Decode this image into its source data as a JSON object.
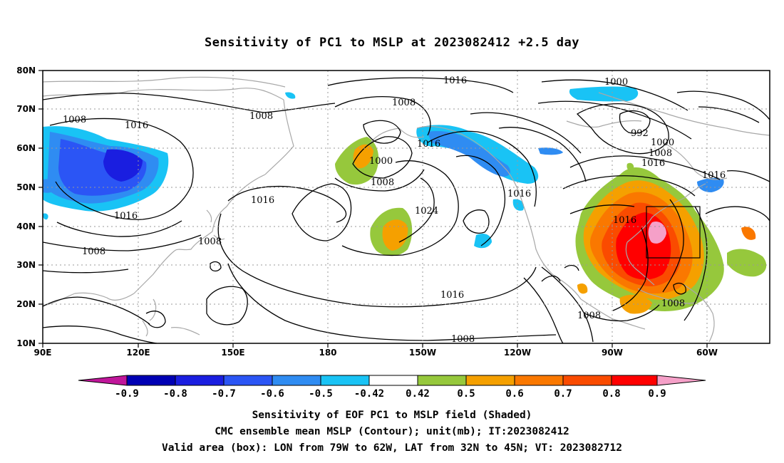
{
  "title": "Sensitivity of PC1 to MSLP at 2023082412 +2.5 day",
  "map": {
    "lon_labels": [
      "90E",
      "120E",
      "150E",
      "180",
      "150W",
      "120W",
      "90W",
      "60W"
    ],
    "lat_labels": [
      "80N",
      "70N",
      "60N",
      "50N",
      "40N",
      "30N",
      "20N",
      "10N"
    ],
    "valid_box": {
      "lon_from": "79W",
      "lon_to": "62W",
      "lat_from": "32N",
      "lat_to": "45N"
    }
  },
  "contour_labels": [
    "1016",
    "1008",
    "1008",
    "1016",
    "1016",
    "1008",
    "1000",
    "1008",
    "1016",
    "1024",
    "1016",
    "1016",
    "1000",
    "992",
    "1000",
    "1008",
    "1016",
    "1016",
    "1016",
    "1008",
    "1016",
    "1008",
    "1008",
    "1008"
  ],
  "colorbar": {
    "labels": [
      "-0.9",
      "-0.8",
      "-0.7",
      "-0.6",
      "-0.5",
      "-0.42",
      "0.42",
      "0.5",
      "0.6",
      "0.7",
      "0.8",
      "0.9"
    ],
    "colors": {
      "lt_m09": "#c0169a",
      "m09_m08": "#0000b4",
      "m08_m07": "#1a1ee0",
      "m07_m06": "#2b55f5",
      "m06_m05": "#2f8cf2",
      "m05_m042": "#19c3f5",
      "neutral": "#ffffff",
      "p042_p05": "#96c83c",
      "p05_p06": "#f5a000",
      "p06_p07": "#fa7800",
      "p07_p08": "#fa4b00",
      "p08_p09": "#ff0000",
      "gt_p09": "#f5a0c8"
    }
  },
  "captions": [
    "Sensitivity of EOF PC1 to MSLP field (Shaded)",
    "CMC ensemble mean MSLP (Contour); unit(mb); IT:2023082412",
    "Valid area (box): LON from 79W to 62W, LAT from 32N to 45N; VT: 2023082712"
  ]
}
